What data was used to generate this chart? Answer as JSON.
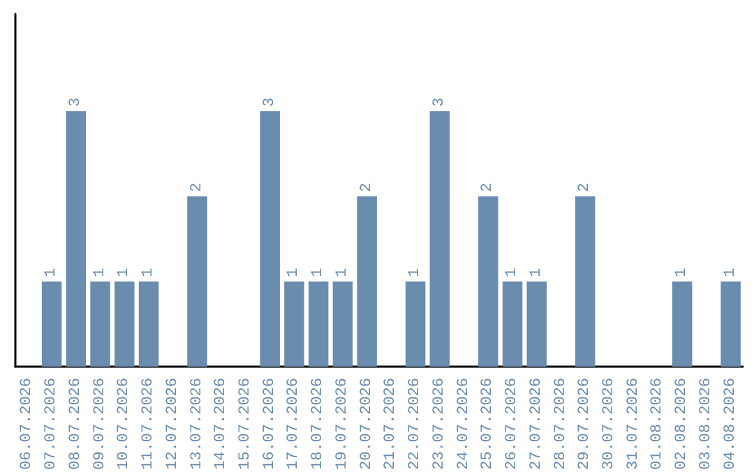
{
  "chart_data": {
    "type": "bar",
    "categories": [
      "06.07.2026",
      "07.07.2026",
      "08.07.2026",
      "09.07.2026",
      "10.07.2026",
      "11.07.2026",
      "12.07.2026",
      "13.07.2026",
      "14.07.2026",
      "15.07.2026",
      "16.07.2026",
      "17.07.2026",
      "18.07.2026",
      "19.07.2026",
      "20.07.2026",
      "21.07.2026",
      "22.07.2026",
      "23.07.2026",
      "24.07.2026",
      "25.07.2026",
      "26.07.2026",
      "27.07.2026",
      "28.07.2026",
      "29.07.2026",
      "30.07.2026",
      "31.07.2026",
      "01.08.2026",
      "02.08.2026",
      "03.08.2026",
      "04.08.2026"
    ],
    "values": [
      0,
      1,
      3,
      1,
      1,
      1,
      0,
      2,
      0,
      0,
      3,
      1,
      1,
      1,
      2,
      0,
      1,
      3,
      0,
      2,
      1,
      1,
      0,
      2,
      0,
      0,
      0,
      1,
      0,
      1
    ],
    "value_labels": [
      null,
      "1",
      "3",
      "1",
      "1",
      "1",
      null,
      "2",
      null,
      null,
      "3",
      "1",
      "1",
      "1",
      "2",
      null,
      "1",
      "3",
      null,
      "2",
      "1",
      "1",
      null,
      "2",
      null,
      null,
      null,
      "1",
      null,
      "1"
    ],
    "color": "#6a8caf"
  }
}
